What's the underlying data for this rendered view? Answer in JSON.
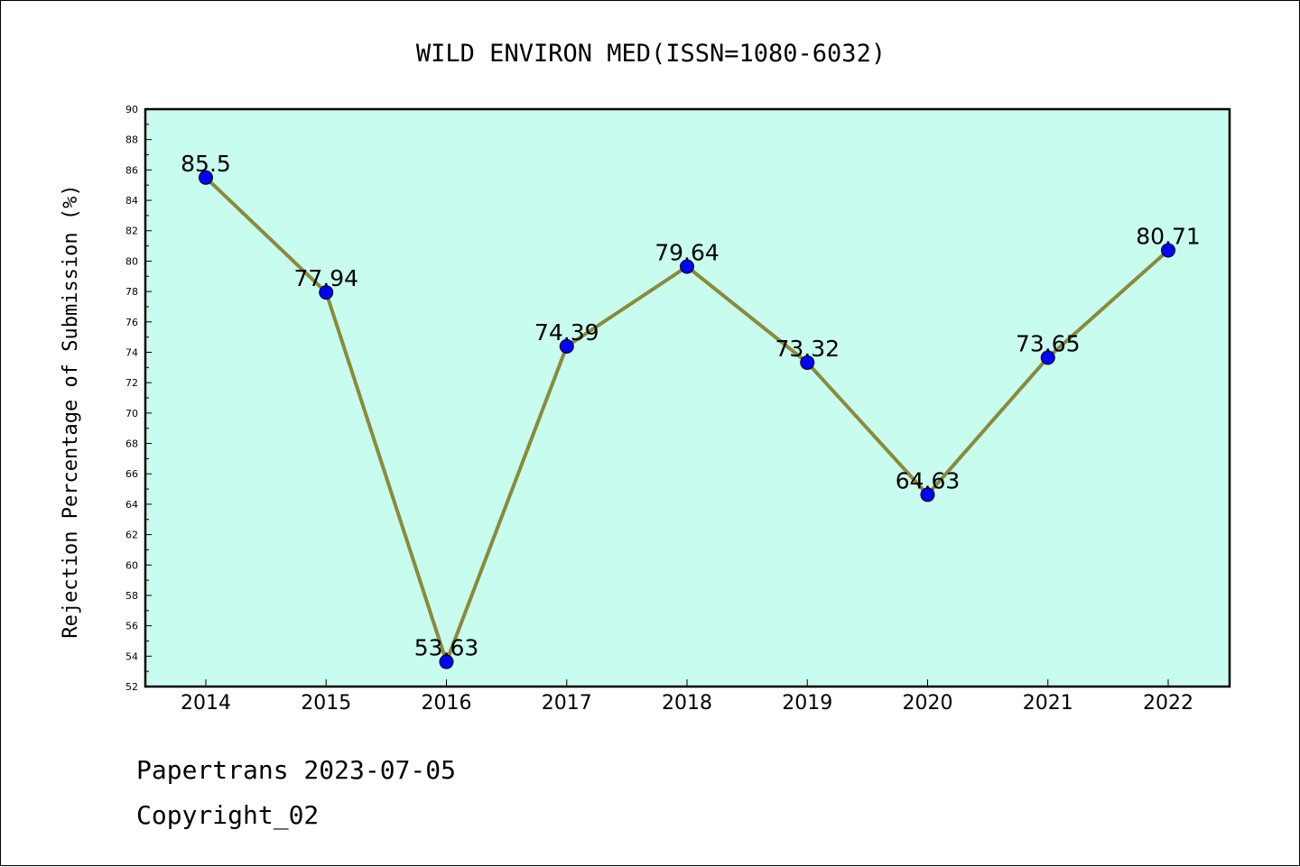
{
  "chart_data": {
    "type": "line",
    "title": "WILD ENVIRON MED(ISSN=1080-6032)",
    "xlabel": "",
    "ylabel": "Rejection Percentage of Submission (%)",
    "categories": [
      "2014",
      "2015",
      "2016",
      "2017",
      "2018",
      "2019",
      "2020",
      "2021",
      "2022"
    ],
    "values": [
      85.5,
      77.94,
      53.63,
      74.39,
      79.64,
      73.32,
      64.63,
      73.65,
      80.71
    ],
    "data_labels": [
      "85.5",
      "77.94",
      "53.63",
      "74.39",
      "79.64",
      "73.32",
      "64.63",
      "73.65",
      "80.71"
    ],
    "ylim": [
      52,
      90
    ],
    "yticks": [
      "52",
      "54",
      "56",
      "58",
      "60",
      "62",
      "64",
      "66",
      "68",
      "70",
      "72",
      "74",
      "76",
      "78",
      "80",
      "82",
      "84",
      "86",
      "88",
      "90"
    ],
    "grid": false,
    "colors": {
      "plot_background": "#c8fcee",
      "line": "#8b8a3a",
      "marker": "#0000ff"
    }
  },
  "footer": {
    "source": "Papertrans 2023-07-05",
    "copyright": "Copyright_02"
  }
}
